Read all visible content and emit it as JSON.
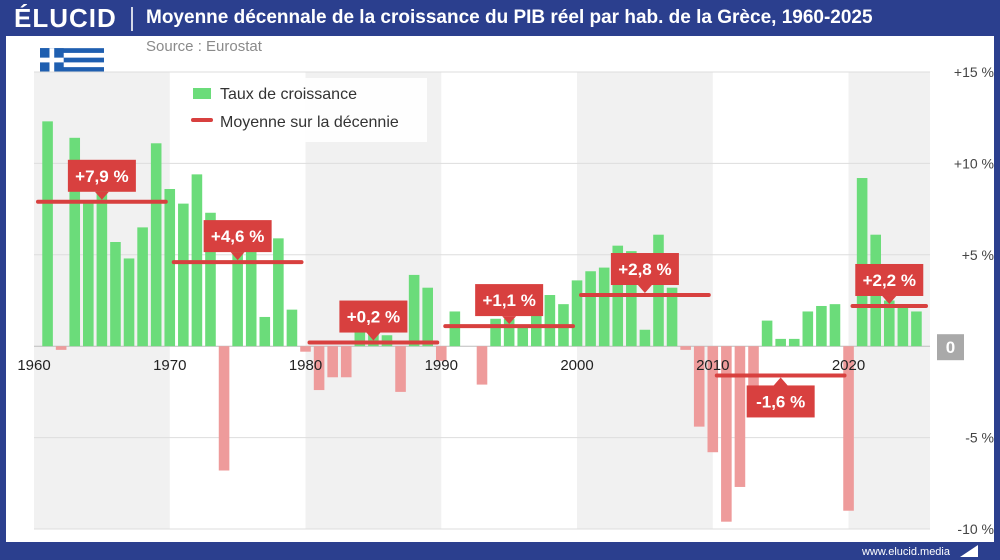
{
  "header": {
    "logo": "ÉLUCID",
    "title": "Moyenne décennale de la croissance du PIB réel par hab. de la Grèce, 1960-2025"
  },
  "source": "Source : Eurostat",
  "footer": {
    "url": "www.elucid.media"
  },
  "colors": {
    "brand": "#2b3f8e",
    "positive_bar": "#6bdc7a",
    "negative_bar": "#ee9b9b",
    "average_line": "#d8403f",
    "label_bg": "#d8403f",
    "band": "#f1f1f1",
    "zero_badge": "#a9a9a9",
    "flag_blue": "#1f5fb0"
  },
  "chart_data": {
    "type": "bar",
    "title": "Moyenne décennale de la croissance du PIB réel par hab. de la Grèce, 1960-2025",
    "xlabel": "",
    "ylabel": "",
    "xlim": [
      1960,
      2025
    ],
    "ylim": [
      -10,
      15
    ],
    "x_ticks": [
      "1960",
      "1970",
      "1980",
      "1990",
      "2000",
      "2010",
      "2020"
    ],
    "y_ticks": [
      {
        "value": 15,
        "label": "+15 %"
      },
      {
        "value": 10,
        "label": "+10 %"
      },
      {
        "value": 5,
        "label": "+5 %"
      },
      {
        "value": 0,
        "label": "0"
      },
      {
        "value": -5,
        "label": "-5 %"
      },
      {
        "value": -10,
        "label": "-10 %"
      }
    ],
    "legend": {
      "placement": "top-left",
      "entries": [
        "Taux de croissance",
        "Moyenne sur la décennie"
      ]
    },
    "series": [
      {
        "name": "Taux de croissance",
        "x": [
          1961,
          1962,
          1963,
          1964,
          1965,
          1966,
          1967,
          1968,
          1969,
          1970,
          1971,
          1972,
          1973,
          1974,
          1975,
          1976,
          1977,
          1978,
          1979,
          1980,
          1981,
          1982,
          1983,
          1984,
          1985,
          1986,
          1987,
          1988,
          1989,
          1990,
          1991,
          1992,
          1993,
          1994,
          1995,
          1996,
          1997,
          1998,
          1999,
          2000,
          2001,
          2002,
          2003,
          2004,
          2005,
          2006,
          2007,
          2008,
          2009,
          2010,
          2011,
          2012,
          2013,
          2014,
          2015,
          2016,
          2017,
          2018,
          2019,
          2020,
          2021,
          2022,
          2023,
          2024,
          2025
        ],
        "values": [
          12.3,
          -0.2,
          11.4,
          7.9,
          9.5,
          5.7,
          4.8,
          6.5,
          11.1,
          8.6,
          7.8,
          9.4,
          7.3,
          -6.8,
          5.3,
          5.2,
          1.6,
          5.9,
          2.0,
          -0.3,
          -2.4,
          -1.7,
          -1.7,
          0.9,
          1.1,
          0.6,
          -2.5,
          3.9,
          3.2,
          -0.8,
          1.9,
          0.0,
          -2.1,
          1.5,
          1.5,
          1.0,
          2.9,
          2.8,
          2.3,
          3.6,
          4.1,
          4.3,
          5.5,
          5.2,
          0.9,
          6.1,
          3.2,
          -0.2,
          -4.4,
          -5.8,
          -9.6,
          -7.7,
          -2.6,
          1.4,
          0.4,
          0.4,
          1.9,
          2.2,
          2.3,
          -9.0,
          9.2,
          6.1,
          2.5,
          2.2,
          1.9
        ]
      }
    ],
    "averages": [
      {
        "name": "Moyenne sur la décennie",
        "from": 1960,
        "to": 1969,
        "value": 7.9,
        "label": "+7,9 %"
      },
      {
        "name": "Moyenne sur la décennie",
        "from": 1970,
        "to": 1979,
        "value": 4.6,
        "label": "+4,6 %"
      },
      {
        "name": "Moyenne sur la décennie",
        "from": 1980,
        "to": 1989,
        "value": 0.2,
        "label": "+0,2 %"
      },
      {
        "name": "Moyenne sur la décennie",
        "from": 1990,
        "to": 1999,
        "value": 1.1,
        "label": "+1,1 %"
      },
      {
        "name": "Moyenne sur la décennie",
        "from": 2000,
        "to": 2009,
        "value": 2.8,
        "label": "+2,8 %"
      },
      {
        "name": "Moyenne sur la décennie",
        "from": 2010,
        "to": 2019,
        "value": -1.6,
        "label": "-1,6 %"
      },
      {
        "name": "Moyenne sur la décennie",
        "from": 2020,
        "to": 2025,
        "value": 2.2,
        "label": "+2,2 %"
      }
    ],
    "grid": true,
    "alternating_decade_bands": true
  }
}
